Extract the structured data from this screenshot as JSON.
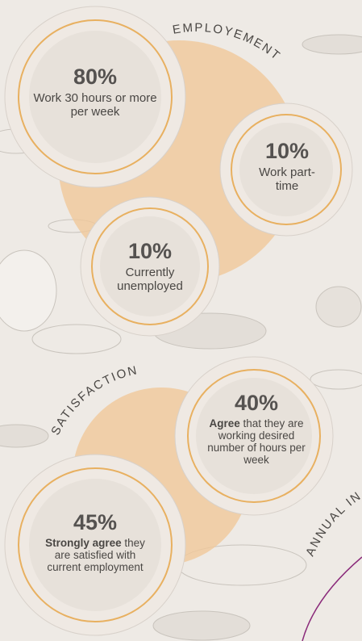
{
  "sections": [
    {
      "heading": "EMPLOYEMENT",
      "stats": [
        {
          "value": "80%",
          "text": "Work 30 hours or more per week"
        },
        {
          "value": "10%",
          "text": "Work part-time"
        },
        {
          "value": "10%",
          "text": "Currently unemployed"
        }
      ]
    },
    {
      "heading": "SATISFACTION",
      "stats": [
        {
          "value": "40%",
          "bold": "Agree",
          "text": "that they are working desired number of hours per week"
        },
        {
          "value": "45%",
          "bold": "Strongly agree",
          "text": "they are satisfied with current employment"
        }
      ]
    },
    {
      "heading": "ANNUAL IN"
    }
  ]
}
